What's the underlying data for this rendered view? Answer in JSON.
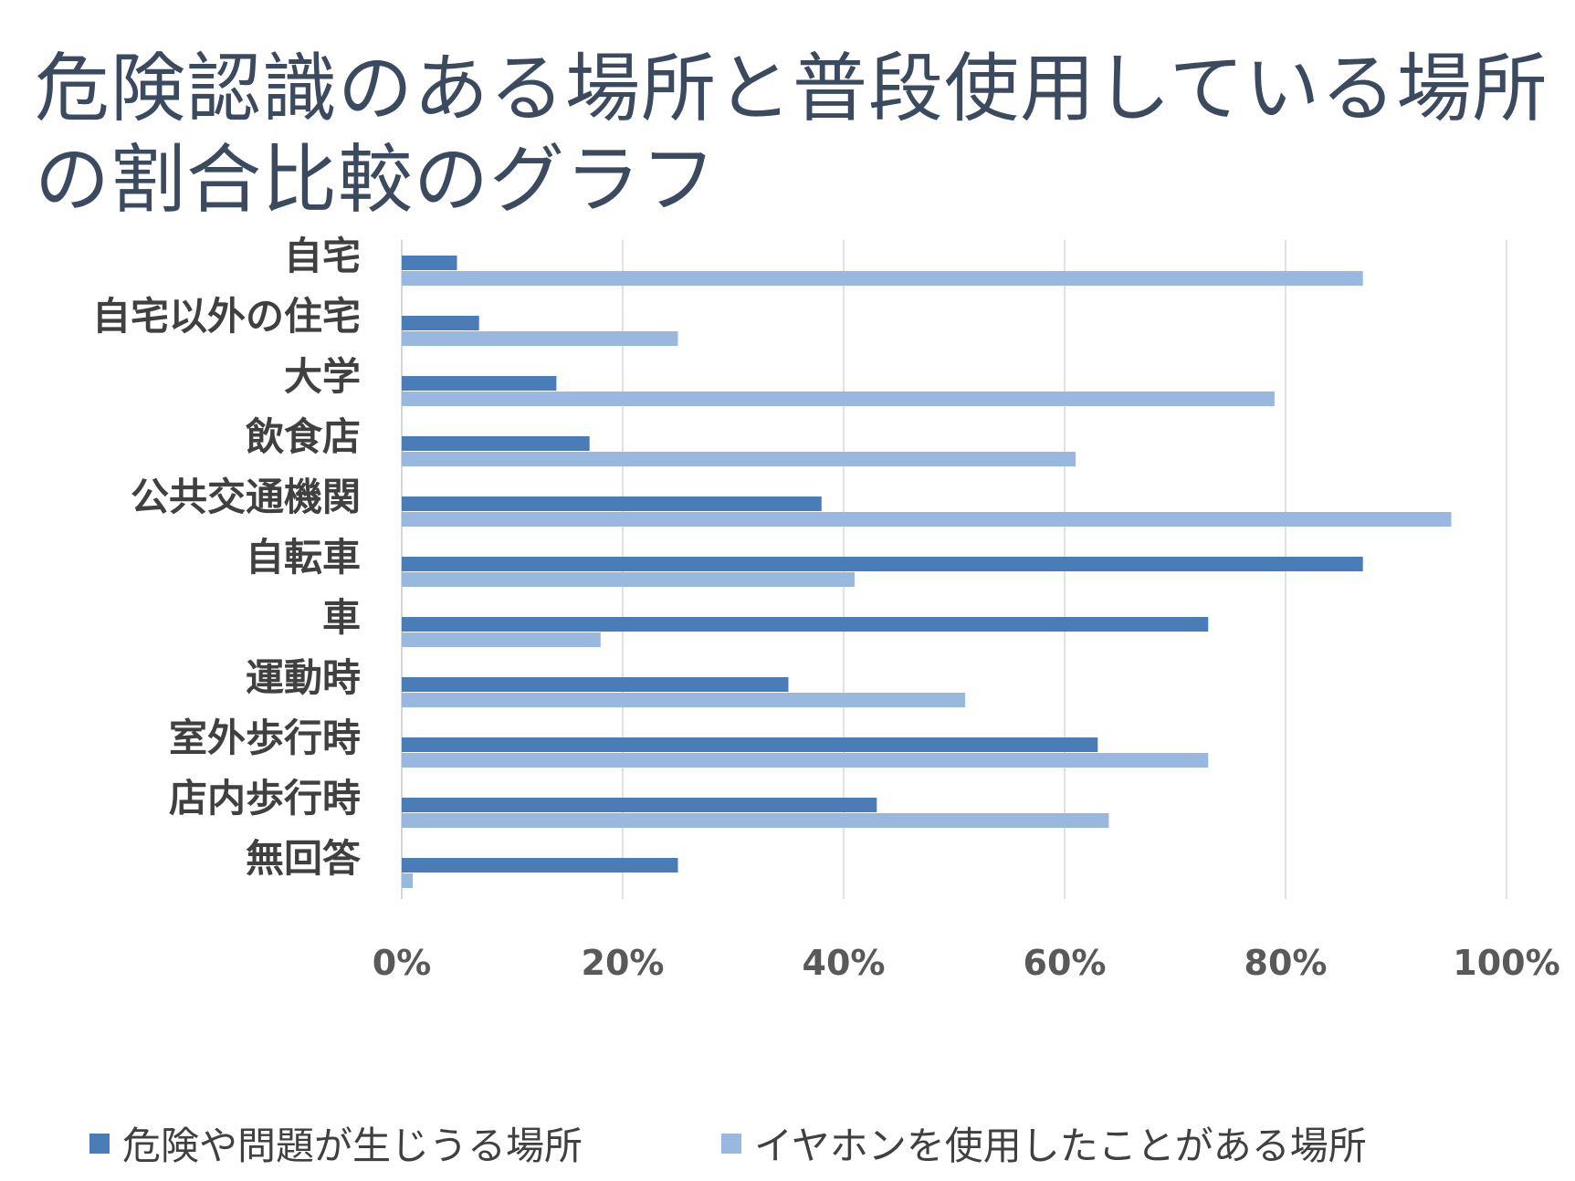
{
  "chart_data": {
    "type": "bar",
    "orientation": "horizontal",
    "title": "危険認識のある場所と普段使用している場所の割合比較のグラフ",
    "categories": [
      "自宅",
      "自宅以外の住宅",
      "大学",
      "飲食店",
      "公共交通機関",
      "自転車",
      "車",
      "運動時",
      "室外歩行時",
      "店内歩行時",
      "無回答"
    ],
    "series": [
      {
        "name": "危険や問題が生じうる場所",
        "color": "#4a7db8",
        "values": [
          0.05,
          0.07,
          0.14,
          0.17,
          0.38,
          0.87,
          0.73,
          0.35,
          0.63,
          0.43,
          0.25
        ]
      },
      {
        "name": "イヤホンを使用したことがある場所",
        "color": "#98b8e0",
        "values": [
          0.87,
          0.25,
          0.79,
          0.61,
          0.95,
          0.41,
          0.18,
          0.51,
          0.73,
          0.64,
          0.01
        ]
      }
    ],
    "x_ticks": [
      "0%",
      "20%",
      "40%",
      "60%",
      "80%",
      "100%"
    ],
    "xlim": [
      0,
      1
    ],
    "grid": true,
    "legend_position": "bottom"
  }
}
